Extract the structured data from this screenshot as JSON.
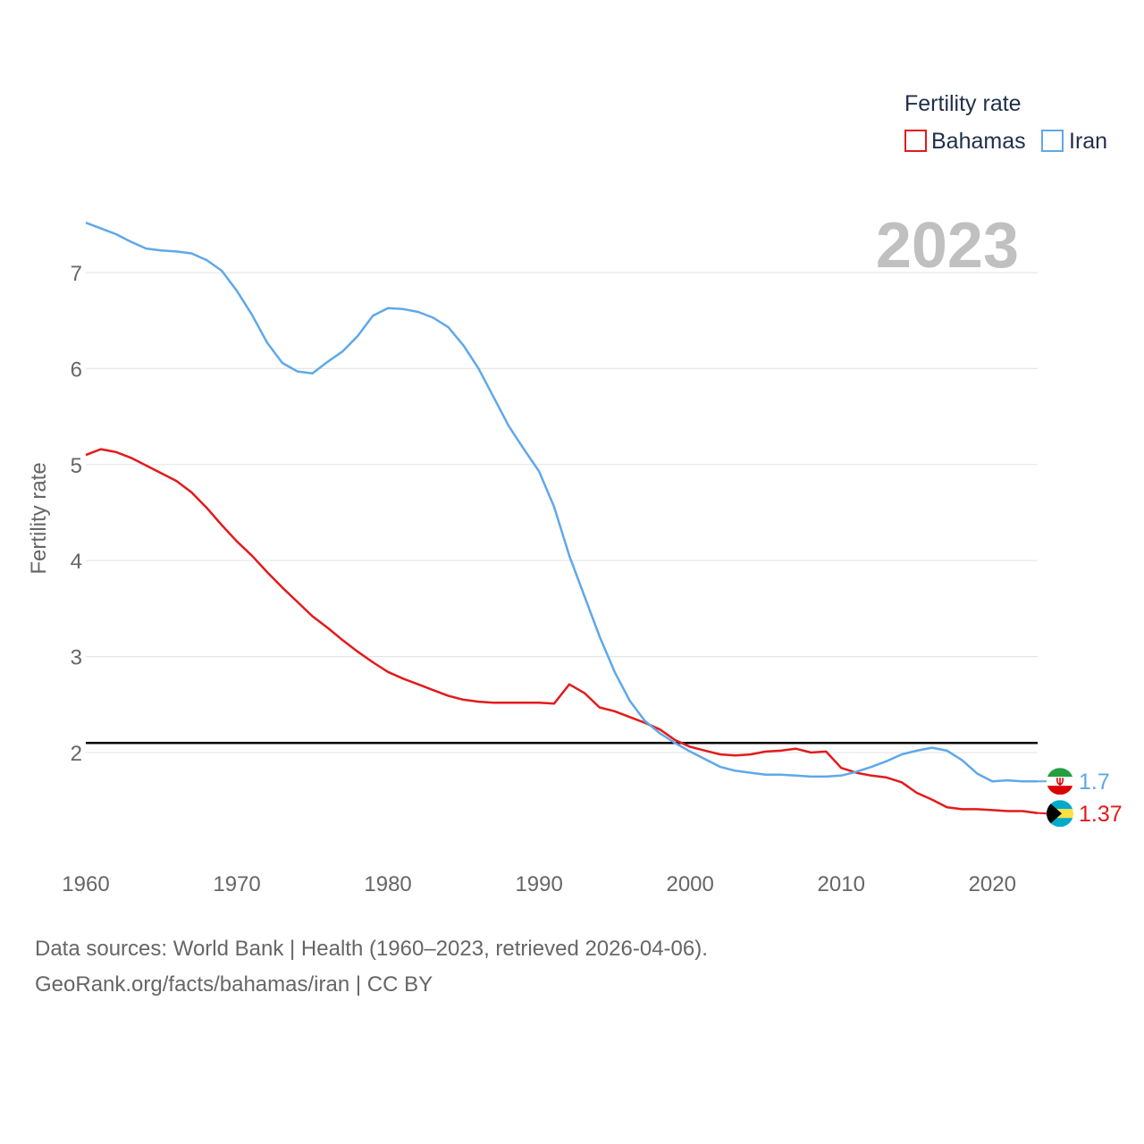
{
  "chart_data": {
    "type": "line",
    "year_label": "2023",
    "ylabel": "Fertility rate",
    "xlabel": "",
    "legend": {
      "title": "Fertility rate",
      "position": "top-right",
      "items": [
        {
          "name": "Bahamas",
          "color": "#e31a1c"
        },
        {
          "name": "Iran",
          "color": "#5fa8e8"
        }
      ]
    },
    "x_ticks": [
      "1960",
      "1970",
      "1980",
      "1990",
      "2000",
      "2010",
      "2020"
    ],
    "y_ticks": [
      "2",
      "3",
      "4",
      "5",
      "6",
      "7"
    ],
    "xlim": [
      1960,
      2023
    ],
    "ylim": [
      0.9,
      7.7
    ],
    "reference_line": {
      "value": 2.1,
      "color": "#000000"
    },
    "x": [
      1960,
      1961,
      1962,
      1963,
      1964,
      1965,
      1966,
      1967,
      1968,
      1969,
      1970,
      1971,
      1972,
      1973,
      1974,
      1975,
      1976,
      1977,
      1978,
      1979,
      1980,
      1981,
      1982,
      1983,
      1984,
      1985,
      1986,
      1987,
      1988,
      1989,
      1990,
      1991,
      1992,
      1993,
      1994,
      1995,
      1996,
      1997,
      1998,
      1999,
      2000,
      2001,
      2002,
      2003,
      2004,
      2005,
      2006,
      2007,
      2008,
      2009,
      2010,
      2011,
      2012,
      2013,
      2014,
      2015,
      2016,
      2017,
      2018,
      2019,
      2020,
      2021,
      2022,
      2023
    ],
    "series": [
      {
        "name": "Bahamas",
        "color": "#e31a1c",
        "end_label": "1.37",
        "flag": "bahamas-flag",
        "values": [
          5.1,
          5.16,
          5.13,
          5.07,
          4.99,
          4.91,
          4.83,
          4.71,
          4.55,
          4.37,
          4.2,
          4.05,
          3.88,
          3.72,
          3.57,
          3.42,
          3.3,
          3.17,
          3.05,
          2.94,
          2.84,
          2.77,
          2.71,
          2.65,
          2.59,
          2.55,
          2.53,
          2.52,
          2.52,
          2.52,
          2.52,
          2.51,
          2.71,
          2.62,
          2.47,
          2.43,
          2.37,
          2.31,
          2.24,
          2.13,
          2.06,
          2.02,
          1.98,
          1.97,
          1.98,
          2.01,
          2.02,
          2.04,
          2.0,
          2.01,
          1.84,
          1.79,
          1.76,
          1.74,
          1.69,
          1.58,
          1.51,
          1.43,
          1.41,
          1.41,
          1.4,
          1.39,
          1.39,
          1.37
        ]
      },
      {
        "name": "Iran",
        "color": "#5fa8e8",
        "end_label": "1.7",
        "flag": "iran-flag",
        "values": [
          7.52,
          7.46,
          7.4,
          7.32,
          7.25,
          7.23,
          7.22,
          7.2,
          7.13,
          7.02,
          6.81,
          6.56,
          6.27,
          6.06,
          5.97,
          5.95,
          6.07,
          6.18,
          6.34,
          6.55,
          6.63,
          6.62,
          6.59,
          6.53,
          6.43,
          6.24,
          6.0,
          5.7,
          5.4,
          5.16,
          4.93,
          4.56,
          4.05,
          3.63,
          3.21,
          2.84,
          2.54,
          2.33,
          2.2,
          2.1,
          2.01,
          1.93,
          1.85,
          1.81,
          1.79,
          1.77,
          1.77,
          1.76,
          1.75,
          1.75,
          1.76,
          1.8,
          1.85,
          1.91,
          1.98,
          2.02,
          2.05,
          2.02,
          1.92,
          1.78,
          1.7,
          1.71,
          1.7,
          1.7
        ]
      }
    ]
  },
  "footer": {
    "sources": "Data sources: World Bank | Health (1960–2023, retrieved 2026-04-06).",
    "credit": "GeoRank.org/facts/bahamas/iran | CC BY"
  },
  "colors": {
    "grid": "#e6e6e6",
    "axis_text": "#666666",
    "year_label": "#c0c0c0",
    "legend_text": "#1f2f4a"
  }
}
